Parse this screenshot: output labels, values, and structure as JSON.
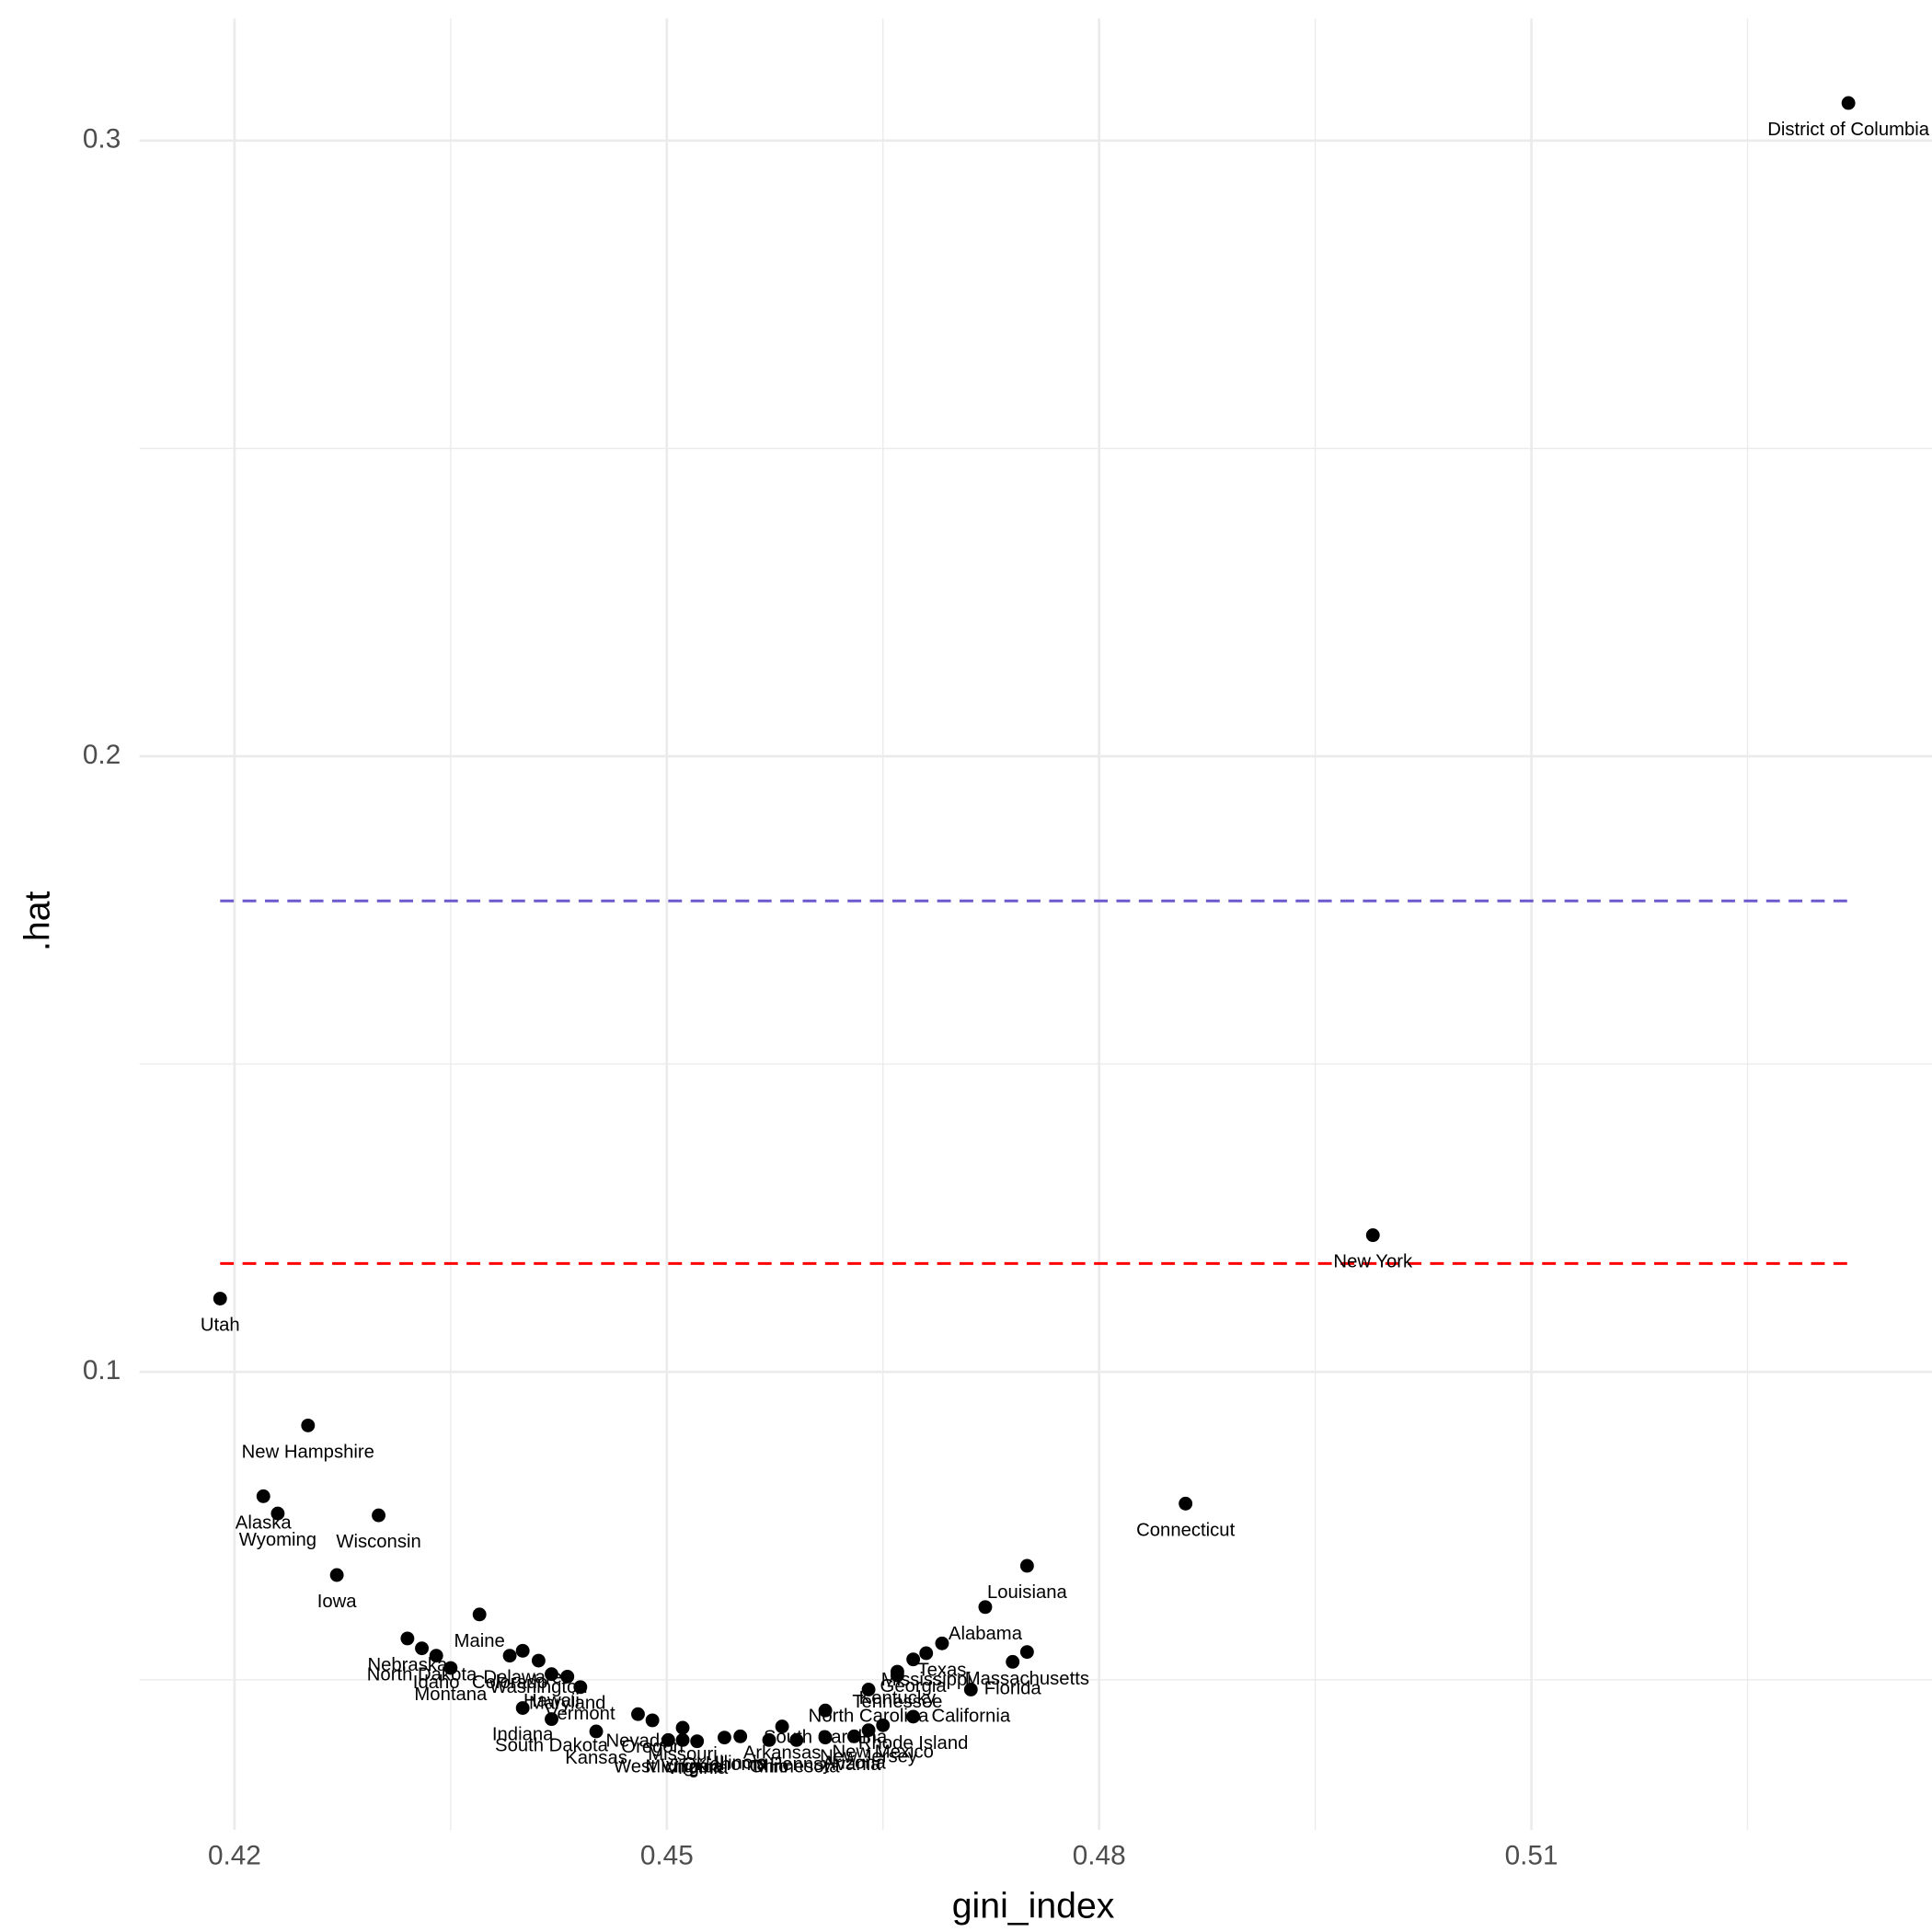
{
  "chart_data": {
    "type": "scatter",
    "x_label": "gini_index",
    "y_label": ".hat",
    "xlim": [
      0.4134,
      0.5378
    ],
    "ylim": [
      0.0256,
      0.3198
    ],
    "xticks": [
      0.42,
      0.45,
      0.48,
      0.51
    ],
    "yticks": [
      0.1,
      0.2,
      0.3
    ],
    "xminor": [
      0.435,
      0.465,
      0.495,
      0.525
    ],
    "yminor": [
      0.05,
      0.15,
      0.25
    ],
    "grid": true,
    "color": "#000000",
    "hlines": [
      {
        "value": 0.1765,
        "color": "#6a5acd"
      },
      {
        "value": 0.1176,
        "color": "#ff0000"
      }
    ],
    "labels": [
      "District of Columbia",
      "New York",
      "Utah",
      "New Hampshire",
      "Alaska",
      "Wyoming",
      "Wisconsin",
      "Iowa",
      "Connecticut",
      "Louisiana",
      "Alabama",
      "Texas",
      "Massachusetts",
      "Florida",
      "California",
      "Rhode Island",
      "Kentucky",
      "Tennessee",
      "Mississippi",
      "Georgia",
      "North Carolina",
      "South Carolina",
      "Pennsylvania",
      "New Jersey",
      "New Mexico",
      "Arizona",
      "Minnesota",
      "Arkansas",
      "Ohio",
      "Illinois",
      "Oklahoma",
      "Virginia",
      "Michigan",
      "Missouri",
      "West Virginia",
      "Oregon",
      "Nevada",
      "Kansas",
      "South Dakota",
      "Indiana",
      "Vermont",
      "Maryland",
      "Hawaii",
      "Washington",
      "Delaware",
      "Colorado",
      "Montana",
      "Idaho",
      "North Dakota",
      "Nebraska",
      "Maine"
    ],
    "x": [
      0.532,
      0.499,
      0.419,
      0.4251,
      0.422,
      0.423,
      0.43,
      0.4271,
      0.486,
      0.475,
      0.4721,
      0.4691,
      0.475,
      0.474,
      0.4711,
      0.4671,
      0.466,
      0.466,
      0.468,
      0.4671,
      0.464,
      0.461,
      0.461,
      0.464,
      0.465,
      0.463,
      0.459,
      0.458,
      0.4571,
      0.4551,
      0.454,
      0.4521,
      0.4511,
      0.4511,
      0.4501,
      0.449,
      0.448,
      0.4451,
      0.442,
      0.44,
      0.444,
      0.4431,
      0.442,
      0.4411,
      0.44,
      0.4391,
      0.435,
      0.434,
      0.433,
      0.432,
      0.437
    ],
    "values": [
      0.3061,
      0.1222,
      0.1119,
      0.0913,
      0.0798,
      0.077,
      0.0767,
      0.067,
      0.0786,
      0.0685,
      0.0618,
      0.0559,
      0.0545,
      0.0529,
      0.0484,
      0.044,
      0.0513,
      0.0507,
      0.0543,
      0.0533,
      0.0484,
      0.045,
      0.0406,
      0.0418,
      0.0426,
      0.0408,
      0.0402,
      0.0424,
      0.0402,
      0.0408,
      0.0406,
      0.04,
      0.0402,
      0.0422,
      0.0402,
      0.0434,
      0.0444,
      0.0416,
      0.0436,
      0.0454,
      0.0488,
      0.0505,
      0.0509,
      0.0531,
      0.0547,
      0.0539,
      0.0519,
      0.0539,
      0.0551,
      0.0567,
      0.0606
    ]
  }
}
